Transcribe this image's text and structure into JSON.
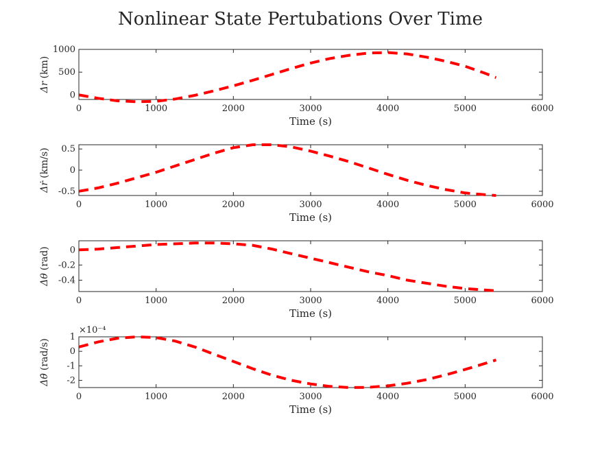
{
  "chart_data": {
    "type": "line",
    "title": "Nonlinear State Pertubations Over Time",
    "line_color": "#ff0000",
    "line_style": "dashed",
    "grid": false,
    "subplots": [
      {
        "ylabel_symbol": "Δr",
        "ylabel_unit": "(km)",
        "xlabel": "Time (s)",
        "xlim": [
          0,
          6000
        ],
        "xticks": [
          "0",
          "1000",
          "2000",
          "3000",
          "4000",
          "5000",
          "6000"
        ],
        "ylim": [
          -100,
          1000
        ],
        "yticks": [
          {
            "v": 0,
            "label": "0"
          },
          {
            "v": 500,
            "label": "500"
          },
          {
            "v": 1000,
            "label": "1000"
          }
        ],
        "x": [
          0,
          250,
          500,
          750,
          1000,
          1250,
          1500,
          1750,
          2000,
          2250,
          2500,
          2750,
          3000,
          3250,
          3500,
          3750,
          4000,
          4250,
          4500,
          4750,
          5000,
          5250,
          5400
        ],
        "y": [
          0,
          -75,
          -130,
          -150,
          -140,
          -90,
          -10,
          90,
          200,
          320,
          450,
          580,
          700,
          800,
          870,
          920,
          930,
          900,
          830,
          740,
          630,
          480,
          380
        ]
      },
      {
        "ylabel_symbol": "Δṙ",
        "ylabel_unit": "(km/s)",
        "xlabel": "Time (s)",
        "xlim": [
          0,
          6000
        ],
        "xticks": [
          "0",
          "1000",
          "2000",
          "3000",
          "4000",
          "5000",
          "6000"
        ],
        "ylim": [
          -0.6,
          0.6
        ],
        "yticks": [
          {
            "v": -0.5,
            "label": "-0.5"
          },
          {
            "v": 0,
            "label": "0"
          },
          {
            "v": 0.5,
            "label": "0.5"
          }
        ],
        "x": [
          0,
          250,
          500,
          750,
          1000,
          1250,
          1500,
          1750,
          2000,
          2250,
          2500,
          2750,
          3000,
          3250,
          3500,
          3750,
          4000,
          4250,
          4500,
          4750,
          5000,
          5250,
          5400
        ],
        "y": [
          -0.5,
          -0.42,
          -0.31,
          -0.18,
          -0.05,
          0.1,
          0.25,
          0.4,
          0.53,
          0.6,
          0.6,
          0.55,
          0.45,
          0.33,
          0.2,
          0.05,
          -0.1,
          -0.24,
          -0.36,
          -0.46,
          -0.54,
          -0.58,
          -0.6
        ]
      },
      {
        "ylabel_symbol": "Δθ",
        "ylabel_unit": "(rad)",
        "xlabel": "Time (s)",
        "xlim": [
          0,
          6000
        ],
        "xticks": [
          "0",
          "1000",
          "2000",
          "3000",
          "4000",
          "5000",
          "6000"
        ],
        "ylim": [
          -0.55,
          0.12
        ],
        "yticks": [
          {
            "v": -0.4,
            "label": "-0.4"
          },
          {
            "v": -0.2,
            "label": "-0.2"
          },
          {
            "v": 0,
            "label": "0"
          }
        ],
        "x": [
          0,
          250,
          500,
          750,
          1000,
          1250,
          1500,
          1750,
          2000,
          2250,
          2500,
          2750,
          3000,
          3250,
          3500,
          3750,
          4000,
          4250,
          4500,
          4750,
          5000,
          5250,
          5400
        ],
        "y": [
          0,
          0.01,
          0.03,
          0.05,
          0.07,
          0.08,
          0.09,
          0.09,
          0.08,
          0.06,
          0.01,
          -0.05,
          -0.11,
          -0.17,
          -0.23,
          -0.29,
          -0.34,
          -0.4,
          -0.44,
          -0.48,
          -0.51,
          -0.53,
          -0.54
        ]
      },
      {
        "ylabel_symbol": "Δθ̇",
        "ylabel_unit": "(rad/s)",
        "xlabel": "Time (s)",
        "xlim": [
          0,
          6000
        ],
        "xticks": [
          "0",
          "1000",
          "2000",
          "3000",
          "4000",
          "5000",
          "6000"
        ],
        "ylim": [
          -2.5,
          1
        ],
        "yticks": [
          {
            "v": -2,
            "label": "-2"
          },
          {
            "v": -1,
            "label": "-1"
          },
          {
            "v": 0,
            "label": "0"
          },
          {
            "v": 1,
            "label": "1"
          }
        ],
        "exponent": "×10⁻⁴",
        "x": [
          0,
          250,
          500,
          750,
          1000,
          1250,
          1500,
          1750,
          2000,
          2250,
          2500,
          2750,
          3000,
          3250,
          3500,
          3750,
          4000,
          4250,
          4500,
          4750,
          5000,
          5250,
          5400
        ],
        "y": [
          0.3,
          0.65,
          0.9,
          1.0,
          0.95,
          0.7,
          0.3,
          -0.2,
          -0.7,
          -1.2,
          -1.65,
          -2.0,
          -2.25,
          -2.42,
          -2.5,
          -2.48,
          -2.38,
          -2.2,
          -1.95,
          -1.62,
          -1.25,
          -0.85,
          -0.6
        ]
      }
    ]
  }
}
